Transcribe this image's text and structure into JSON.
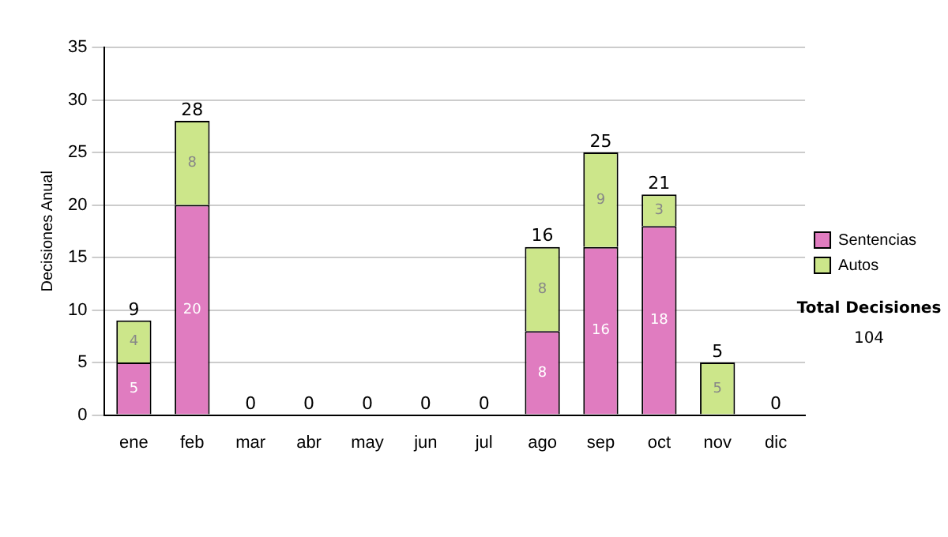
{
  "chart_data": {
    "type": "bar",
    "stacked": true,
    "ylabel": "Decisiones Anual",
    "categories": [
      "ene",
      "feb",
      "mar",
      "abr",
      "may",
      "jun",
      "jul",
      "ago",
      "sep",
      "oct",
      "nov",
      "dic"
    ],
    "series": [
      {
        "name": "Sentencias",
        "color": "#e07cc0",
        "values": [
          5,
          20,
          0,
          0,
          0,
          0,
          0,
          8,
          16,
          18,
          0,
          0
        ],
        "value_labels": [
          "5",
          "20",
          null,
          null,
          null,
          null,
          null,
          "8",
          "16",
          "18",
          null,
          null
        ]
      },
      {
        "name": "Autos",
        "color": "#cce68a",
        "values": [
          4,
          8,
          0,
          0,
          0,
          0,
          0,
          8,
          9,
          3,
          5,
          0
        ],
        "value_labels": [
          "4",
          "8",
          null,
          null,
          null,
          null,
          null,
          "8",
          "9",
          "3",
          "5",
          null
        ]
      }
    ],
    "totals": [
      "9",
      "28",
      "0",
      "0",
      "0",
      "0",
      "0",
      "16",
      "25",
      "21",
      "5",
      "0"
    ],
    "ylim": [
      0,
      35
    ],
    "yticks": [
      0,
      5,
      10,
      15,
      20,
      25,
      30,
      35
    ],
    "grid": "y",
    "legend": "right",
    "annotations": [
      "Total Decisiones",
      "104"
    ]
  }
}
